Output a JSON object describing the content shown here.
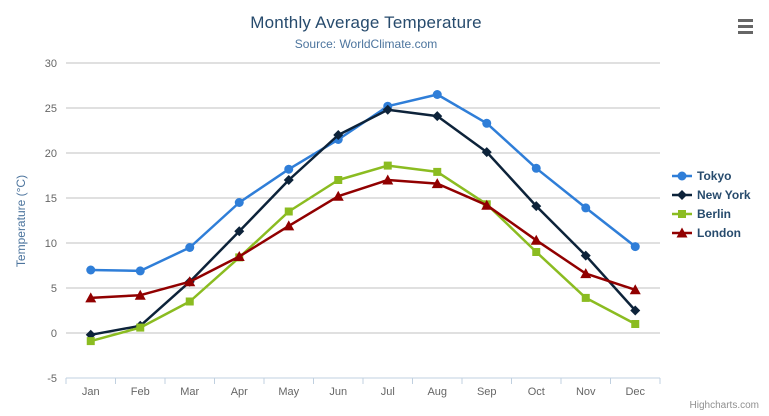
{
  "chart_data": {
    "type": "line",
    "title": "Monthly Average Temperature",
    "subtitle": "Source: WorldClimate.com",
    "categories": [
      "Jan",
      "Feb",
      "Mar",
      "Apr",
      "May",
      "Jun",
      "Jul",
      "Aug",
      "Sep",
      "Oct",
      "Nov",
      "Dec"
    ],
    "series": [
      {
        "name": "Tokyo",
        "color": "#2f7ed8",
        "marker": "circle",
        "values": [
          7.0,
          6.9,
          9.5,
          14.5,
          18.2,
          21.5,
          25.2,
          26.5,
          23.3,
          18.3,
          13.9,
          9.6
        ]
      },
      {
        "name": "New York",
        "color": "#0d233a",
        "marker": "diamond",
        "values": [
          -0.2,
          0.8,
          5.7,
          11.3,
          17.0,
          22.0,
          24.8,
          24.1,
          20.1,
          14.1,
          8.6,
          2.5
        ]
      },
      {
        "name": "Berlin",
        "color": "#8bbc21",
        "marker": "square",
        "values": [
          -0.9,
          0.6,
          3.5,
          8.4,
          13.5,
          17.0,
          18.6,
          17.9,
          14.3,
          9.0,
          3.9,
          1.0
        ]
      },
      {
        "name": "London",
        "color": "#910000",
        "marker": "triangle",
        "values": [
          3.9,
          4.2,
          5.7,
          8.5,
          11.9,
          15.2,
          17.0,
          16.6,
          14.2,
          10.3,
          6.6,
          4.8
        ]
      }
    ],
    "xlabel": "",
    "ylabel": "Temperature (°C)",
    "ylim": [
      -5,
      30
    ],
    "ytick_interval": 5,
    "grid": true,
    "legend_position": "right"
  },
  "credits": {
    "label": "Highcharts.com"
  },
  "export_menu": {
    "icon": "hamburger-icon"
  },
  "colors": {
    "title": "#274b6d",
    "subtitle": "#4d759e",
    "axis_title": "#4d759e",
    "axis_labels": "#666666",
    "grid_line": "#c0c0c0",
    "axis_line": "#c0d0e0",
    "legend_text": "#274b6d",
    "credits": "#909090",
    "export_icon": "#666666",
    "background": "#ffffff"
  }
}
